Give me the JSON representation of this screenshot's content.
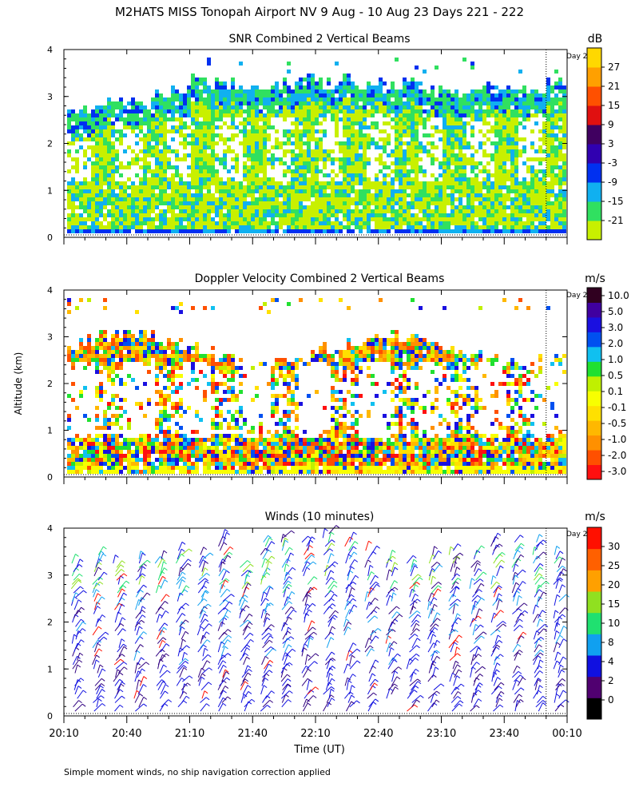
{
  "figure": {
    "title": "M2HATS MISS Tonopah Airport NV   9 Aug - 10 Aug 23 Days 221 - 222",
    "ylabel": "Altitude (km)",
    "xlabel": "Time (UT)",
    "footnote": "Simple moment winds, no ship navigation correction applied",
    "day_marker": "Day 2"
  },
  "chart_data": [
    {
      "type": "heatmap",
      "title": "SNR Combined 2 Vertical Beams",
      "colorbar_unit": "dB",
      "colorbar_labels": [
        "-21",
        "-15",
        "-9",
        "-3",
        "3",
        "9",
        "15",
        "21",
        "27"
      ],
      "colorbar_colors": [
        "#c8f000",
        "#30e060",
        "#10b0f0",
        "#0030f0",
        "#3000b0",
        "#400060",
        "#e01010",
        "#ff5000",
        "#ffa000",
        "#ffd800"
      ],
      "x_tick_labels": [
        "20:10",
        "20:40",
        "21:10",
        "21:40",
        "22:10",
        "22:40",
        "23:10",
        "23:40",
        "00:10"
      ],
      "xlim_minutes": [
        0,
        240
      ],
      "ylim": [
        0,
        4
      ],
      "y_ticks": [
        0,
        1,
        2,
        3,
        4
      ],
      "day_boundary_minutes": 230,
      "profiles": [
        {
          "t": 0,
          "top": 2.7
        },
        {
          "t": 15,
          "top": 2.8
        },
        {
          "t": 25,
          "top": 3.0
        },
        {
          "t": 35,
          "top": 2.9
        },
        {
          "t": 45,
          "top": 3.1
        },
        {
          "t": 55,
          "top": 3.2
        },
        {
          "t": 65,
          "top": 3.4
        },
        {
          "t": 75,
          "top": 3.3
        },
        {
          "t": 85,
          "top": 3.3
        },
        {
          "t": 95,
          "top": 3.2
        },
        {
          "t": 105,
          "top": 3.3
        },
        {
          "t": 115,
          "top": 3.4
        },
        {
          "t": 125,
          "top": 3.3
        },
        {
          "t": 135,
          "top": 3.4
        },
        {
          "t": 145,
          "top": 3.3
        },
        {
          "t": 155,
          "top": 3.3
        },
        {
          "t": 165,
          "top": 3.4
        },
        {
          "t": 175,
          "top": 3.2
        },
        {
          "t": 185,
          "top": 3.1
        },
        {
          "t": 195,
          "top": 3.2
        },
        {
          "t": 205,
          "top": 3.3
        },
        {
          "t": 215,
          "top": 3.3
        },
        {
          "t": 225,
          "top": 3.2
        },
        {
          "t": 235,
          "top": 3.3
        }
      ]
    },
    {
      "type": "heatmap",
      "title": "Doppler Velocity Combined 2 Vertical Beams",
      "colorbar_unit": "m/s",
      "colorbar_labels": [
        "-3.0",
        "-2.0",
        "-1.0",
        "-0.5",
        "-0.1",
        "0.1",
        "0.5",
        "1.0",
        "2.0",
        "3.0",
        "5.0",
        "10.0"
      ],
      "colorbar_colors": [
        "#ff1010",
        "#ff5000",
        "#ff9000",
        "#ffb800",
        "#ffe000",
        "#f8ff00",
        "#c0f000",
        "#20e030",
        "#10c0f0",
        "#0050f0",
        "#1a10e0",
        "#4000a0",
        "#300020"
      ],
      "x_tick_labels": [
        "20:10",
        "20:40",
        "21:10",
        "21:40",
        "22:10",
        "22:40",
        "23:10",
        "23:40",
        "00:10"
      ],
      "xlim_minutes": [
        0,
        240
      ],
      "ylim": [
        0,
        4
      ],
      "y_ticks": [
        0,
        1,
        2,
        3,
        4
      ],
      "day_boundary_minutes": 230
    },
    {
      "type": "scatter",
      "title": "Winds (10 minutes)",
      "colorbar_unit": "m/s",
      "colorbar_labels": [
        "0",
        "2",
        "4",
        "8",
        "10",
        "15",
        "20",
        "25",
        "30"
      ],
      "colorbar_colors": [
        "#000000",
        "#500070",
        "#1010e0",
        "#10a0f0",
        "#20e070",
        "#90e020",
        "#ffa000",
        "#ff6000",
        "#ff1000"
      ],
      "x_tick_labels": [
        "20:10",
        "20:40",
        "21:10",
        "21:40",
        "22:10",
        "22:40",
        "23:10",
        "23:40",
        "00:10"
      ],
      "xlim_minutes": [
        0,
        240
      ],
      "ylim": [
        0,
        4
      ],
      "y_ticks": [
        0,
        1,
        2,
        3,
        4
      ],
      "day_boundary_minutes": 230,
      "profile_times_minutes": [
        5,
        15,
        25,
        35,
        45,
        55,
        65,
        75,
        85,
        95,
        105,
        115,
        125,
        135,
        145,
        155,
        165,
        175,
        185,
        195,
        205,
        215,
        225,
        235
      ]
    }
  ]
}
